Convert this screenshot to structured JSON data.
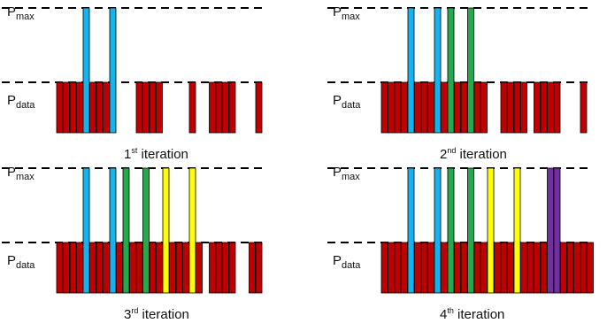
{
  "labels": {
    "p_symbol": "P",
    "max_sub": "max",
    "data_sub": "data"
  },
  "colors": {
    "data": "#c00000",
    "cyan": "#14b4f0",
    "green": "#22aa4c",
    "yellow": "#ffff00",
    "purple": "#7030a0",
    "outline": "#000000"
  },
  "panels": [
    {
      "caption_num": "1",
      "caption_sup": "st",
      "caption_text": " iteration",
      "gaps": [
        9,
        10,
        11,
        16,
        17,
        18,
        19,
        21,
        22,
        27,
        28,
        29,
        31
      ],
      "spikes": [
        {
          "index": 4,
          "color": "cyan"
        },
        {
          "index": 8,
          "color": "cyan"
        }
      ]
    },
    {
      "caption_num": "2",
      "caption_sup": "nd",
      "caption_text": " iteration",
      "gaps": [
        16,
        17,
        22,
        27,
        28,
        29,
        31
      ],
      "spikes": [
        {
          "index": 4,
          "color": "cyan"
        },
        {
          "index": 8,
          "color": "cyan"
        },
        {
          "index": 10,
          "color": "green"
        },
        {
          "index": 13,
          "color": "green"
        }
      ]
    },
    {
      "caption_num": "3",
      "caption_sup": "rd",
      "caption_text": " iteration",
      "gaps": [
        22,
        27,
        28,
        31
      ],
      "spikes": [
        {
          "index": 4,
          "color": "cyan"
        },
        {
          "index": 8,
          "color": "cyan"
        },
        {
          "index": 10,
          "color": "green"
        },
        {
          "index": 13,
          "color": "green"
        },
        {
          "index": 16,
          "color": "yellow"
        },
        {
          "index": 20,
          "color": "yellow"
        }
      ]
    },
    {
      "caption_num": "4",
      "caption_sup": "th",
      "caption_text": " iteration",
      "gaps": [],
      "spikes": [
        {
          "index": 4,
          "color": "cyan"
        },
        {
          "index": 8,
          "color": "cyan"
        },
        {
          "index": 10,
          "color": "green"
        },
        {
          "index": 13,
          "color": "green"
        },
        {
          "index": 16,
          "color": "yellow"
        },
        {
          "index": 20,
          "color": "yellow"
        },
        {
          "index": 25,
          "color": "purple"
        },
        {
          "index": 26,
          "color": "purple"
        }
      ]
    }
  ]
}
